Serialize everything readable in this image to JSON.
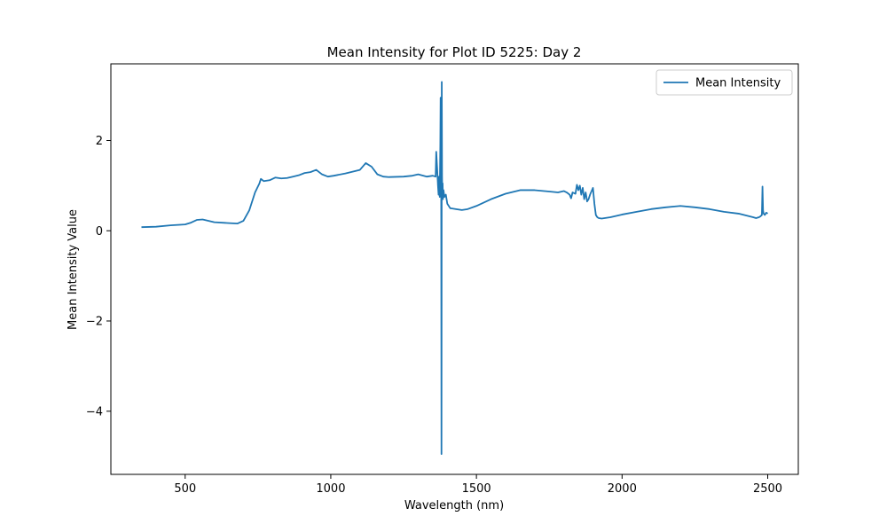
{
  "chart_data": {
    "type": "line",
    "title": "Mean Intensity for Plot ID 5225: Day 2",
    "xlabel": "Wavelength (nm)",
    "ylabel": "Mean Intensity Value",
    "xlim": [
      245,
      2605
    ],
    "ylim": [
      -5.4,
      3.7
    ],
    "xticks": [
      500,
      1000,
      1500,
      2000,
      2500
    ],
    "xtick_labels": [
      "500",
      "1000",
      "1500",
      "2000",
      "2500"
    ],
    "yticks": [
      -4,
      -2,
      0,
      2
    ],
    "ytick_labels": [
      "−4",
      "−2",
      "0",
      "2"
    ],
    "grid": false,
    "legend_position": "top-right",
    "color": "#1f77b4",
    "series": [
      {
        "name": "Mean Intensity",
        "x": [
          350,
          400,
          450,
          500,
          520,
          540,
          560,
          600,
          650,
          680,
          700,
          720,
          740,
          755,
          760,
          770,
          790,
          810,
          830,
          850,
          870,
          890,
          910,
          930,
          950,
          970,
          990,
          1010,
          1050,
          1100,
          1120,
          1140,
          1160,
          1180,
          1200,
          1250,
          1280,
          1300,
          1330,
          1350,
          1360,
          1362,
          1365,
          1368,
          1370,
          1372,
          1374,
          1376,
          1377,
          1378,
          1379,
          1380,
          1381,
          1382,
          1383,
          1384,
          1385,
          1387,
          1390,
          1395,
          1400,
          1410,
          1430,
          1450,
          1470,
          1500,
          1550,
          1600,
          1650,
          1700,
          1750,
          1780,
          1800,
          1810,
          1820,
          1825,
          1830,
          1840,
          1845,
          1850,
          1855,
          1860,
          1865,
          1870,
          1875,
          1880,
          1885,
          1890,
          1900,
          1905,
          1910,
          1915,
          1920,
          1930,
          1940,
          1960,
          1980,
          2000,
          2050,
          2100,
          2150,
          2200,
          2250,
          2300,
          2350,
          2400,
          2450,
          2460,
          2470,
          2475,
          2480,
          2482,
          2484,
          2486,
          2490,
          2495,
          2500
        ],
        "y": [
          0.08,
          0.09,
          0.12,
          0.14,
          0.18,
          0.24,
          0.25,
          0.19,
          0.17,
          0.16,
          0.22,
          0.45,
          0.85,
          1.05,
          1.15,
          1.1,
          1.12,
          1.18,
          1.16,
          1.17,
          1.2,
          1.23,
          1.28,
          1.3,
          1.35,
          1.25,
          1.2,
          1.22,
          1.27,
          1.35,
          1.5,
          1.42,
          1.25,
          1.2,
          1.19,
          1.2,
          1.22,
          1.25,
          1.2,
          1.22,
          1.2,
          1.75,
          1.4,
          1.0,
          0.8,
          1.2,
          0.75,
          1.9,
          2.95,
          0.85,
          1.5,
          -4.95,
          3.3,
          1.2,
          0.75,
          1.05,
          0.7,
          0.9,
          0.75,
          0.8,
          0.6,
          0.5,
          0.48,
          0.46,
          0.48,
          0.55,
          0.7,
          0.82,
          0.9,
          0.9,
          0.87,
          0.85,
          0.88,
          0.85,
          0.8,
          0.72,
          0.85,
          0.82,
          1.02,
          0.9,
          1.0,
          0.8,
          0.95,
          0.7,
          0.85,
          0.65,
          0.7,
          0.8,
          0.95,
          0.6,
          0.35,
          0.3,
          0.28,
          0.27,
          0.28,
          0.3,
          0.33,
          0.36,
          0.42,
          0.48,
          0.52,
          0.55,
          0.52,
          0.48,
          0.42,
          0.38,
          0.3,
          0.28,
          0.3,
          0.32,
          0.35,
          0.98,
          0.45,
          0.38,
          0.35,
          0.4,
          0.38
        ]
      }
    ]
  }
}
